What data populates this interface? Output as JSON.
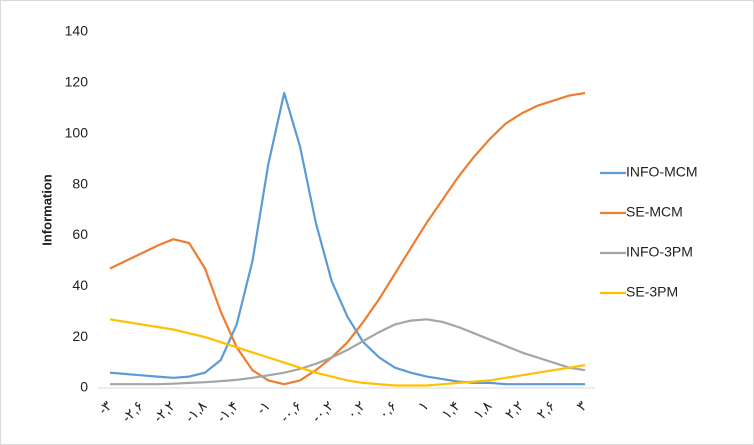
{
  "chart_data": {
    "type": "line",
    "y_axis_label": "Information",
    "categories": [
      "-۳",
      null,
      "-۲,۶",
      null,
      "-۲,۲",
      null,
      "-۱,۸",
      null,
      "-۱,۴",
      null,
      "-۱",
      null,
      "-۰,۶",
      null,
      "-۰,۲",
      null,
      "۰,۲",
      null,
      "۰,۶",
      null,
      "۱",
      null,
      "۱,۴",
      null,
      "۱,۸",
      null,
      "۲,۲",
      null,
      "۲,۶",
      null,
      "۳"
    ],
    "series": [
      {
        "name": "INFO-MCM",
        "color": "#5b9bd5",
        "values": [
          6,
          5.5,
          5,
          4.5,
          4,
          4.5,
          6,
          11,
          25,
          50,
          88,
          116,
          95,
          65,
          42,
          28,
          18,
          12,
          8,
          6,
          4.5,
          3.5,
          2.5,
          2,
          2,
          1.5,
          1.5,
          1.5,
          1.5,
          1.5,
          1.5
        ]
      },
      {
        "name": "SE-MCM",
        "color": "#ed7d31",
        "values": [
          47,
          50,
          53,
          56,
          58.5,
          57,
          47,
          30,
          16,
          7,
          3,
          1.5,
          3,
          7,
          12,
          18,
          26,
          35,
          45,
          55,
          65,
          74,
          83,
          91,
          98,
          104,
          108,
          111,
          113,
          115,
          116
        ]
      },
      {
        "name": "INFO-3PM",
        "color": "#a5a5a5",
        "values": [
          1.5,
          1.5,
          1.5,
          1.5,
          1.7,
          2,
          2.3,
          2.7,
          3.2,
          4,
          5,
          6,
          7.5,
          9.5,
          12,
          15,
          18.5,
          22,
          25,
          26.5,
          27,
          26,
          24,
          21.5,
          19,
          16.5,
          14,
          12,
          10,
          8,
          7
        ]
      },
      {
        "name": "SE-3PM",
        "color": "#ffc000",
        "values": [
          27,
          26,
          25,
          24,
          23,
          21.5,
          20,
          18,
          16,
          14,
          12,
          10,
          8,
          6,
          4.5,
          3,
          2,
          1.5,
          1,
          1,
          1,
          1.5,
          2,
          2.5,
          3,
          4,
          5,
          6,
          7,
          8,
          9
        ]
      }
    ],
    "ylim": [
      0,
      140
    ],
    "yticks": [
      0,
      20,
      40,
      60,
      80,
      100,
      120,
      140
    ],
    "grid": false,
    "legend": "right"
  }
}
